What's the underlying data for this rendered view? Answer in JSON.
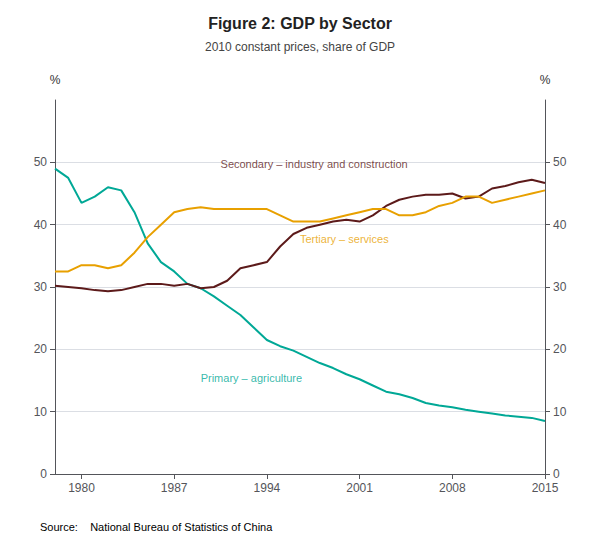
{
  "chart_data": {
    "type": "line",
    "title": "Figure 2: GDP by Sector",
    "subtitle": "2010 constant prices, share of GDP",
    "source": "Source:    National Bureau of Statistics of China",
    "ylabel": "%",
    "y2label": "%",
    "grid": true,
    "x": [
      1978,
      1979,
      1980,
      1981,
      1982,
      1983,
      1984,
      1985,
      1986,
      1987,
      1988,
      1989,
      1990,
      1991,
      1992,
      1993,
      1994,
      1995,
      1996,
      1997,
      1998,
      1999,
      2000,
      2001,
      2002,
      2003,
      2004,
      2005,
      2006,
      2007,
      2008,
      2009,
      2010,
      2011,
      2012,
      2013,
      2014,
      2015
    ],
    "xlim": [
      1978,
      2015
    ],
    "xticks": [
      1980,
      1987,
      1994,
      2001,
      2008,
      2015
    ],
    "ylim": [
      0,
      60
    ],
    "yticks": [
      0,
      10,
      20,
      30,
      40,
      50
    ],
    "y2lim": [
      0,
      60
    ],
    "y2ticks": [
      0,
      10,
      20,
      30,
      40,
      50
    ],
    "series": [
      {
        "color": "#00A896",
        "values": [
          49.0,
          47.5,
          43.5,
          44.5,
          46.0,
          45.5,
          42.0,
          37.0,
          34.0,
          32.5,
          30.5,
          29.8,
          28.5,
          27.0,
          25.5,
          23.5,
          21.5,
          20.5,
          19.8,
          18.8,
          17.8,
          17.0,
          16.0,
          15.2,
          14.2,
          13.2,
          12.8,
          12.2,
          11.4,
          11.0,
          10.7,
          10.3,
          10.0,
          9.7,
          9.4,
          9.2,
          9.0,
          8.5
        ]
      },
      {
        "color": "#5C1A1A",
        "values": [
          30.2,
          30.0,
          29.8,
          29.5,
          29.3,
          29.5,
          30.0,
          30.5,
          30.5,
          30.2,
          30.5,
          29.8,
          30.0,
          31.0,
          33.0,
          33.5,
          34.0,
          36.5,
          38.5,
          39.5,
          40.0,
          40.5,
          40.8,
          40.5,
          41.5,
          43.0,
          44.0,
          44.5,
          44.8,
          44.8,
          45.0,
          44.2,
          44.5,
          45.8,
          46.2,
          46.8,
          47.2,
          46.7
        ]
      },
      {
        "color": "#E8A000",
        "values": [
          32.5,
          32.5,
          33.5,
          33.5,
          33.0,
          33.5,
          35.5,
          38.0,
          40.0,
          42.0,
          42.5,
          42.8,
          42.5,
          42.5,
          42.5,
          42.5,
          42.5,
          41.5,
          40.5,
          40.5,
          40.5,
          41.0,
          41.5,
          42.0,
          42.5,
          42.5,
          41.5,
          41.5,
          42.0,
          43.0,
          43.5,
          44.5,
          44.5,
          43.5,
          44.0,
          44.5,
          45.0,
          45.5
        ]
      }
    ],
    "annotations": [
      {
        "text": "Secondary – industry and construction",
        "x": 1990.5,
        "y": 48.8,
        "color": "#5C1A1A"
      },
      {
        "text": "Tertiary – services",
        "x": 1996.5,
        "y": 36.8,
        "color": "#E8A000"
      },
      {
        "text": "Primary – agriculture",
        "x": 1989.0,
        "y": 14.5,
        "color": "#00A896"
      }
    ]
  }
}
